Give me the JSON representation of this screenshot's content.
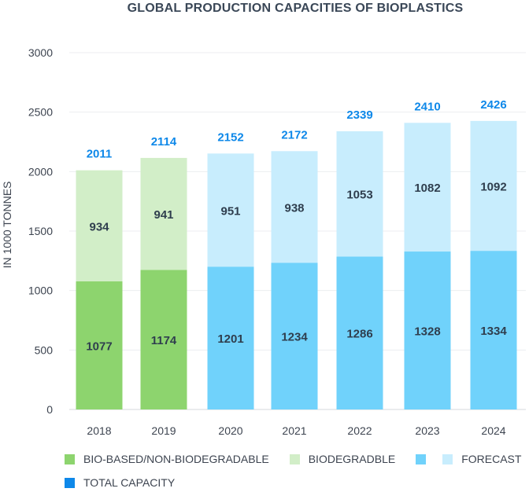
{
  "chart_data": {
    "type": "bar",
    "stacked": true,
    "title": "GLOBAL PRODUCTION CAPACITIES OF BIOPLASTICS",
    "ylabel": "IN 1000 TONNES",
    "xlabel": "",
    "ylim": [
      0,
      3000
    ],
    "yticks": [
      0,
      500,
      1000,
      1500,
      2000,
      2500,
      3000
    ],
    "grid": true,
    "categories": [
      "2018",
      "2019",
      "2020",
      "2021",
      "2022",
      "2023",
      "2024"
    ],
    "forecast": [
      false,
      false,
      true,
      true,
      true,
      true,
      true
    ],
    "series": [
      {
        "name": "BIO-BASED/NON-BIODEGRADABLE",
        "values": [
          1077,
          1174,
          1201,
          1234,
          1286,
          1328,
          1334
        ]
      },
      {
        "name": "BIODEGRADBLE",
        "values": [
          934,
          941,
          951,
          938,
          1053,
          1082,
          1092
        ]
      }
    ],
    "totals": {
      "name": "TOTAL CAPACITY",
      "values": [
        2011,
        2114,
        2152,
        2172,
        2339,
        2410,
        2426
      ]
    },
    "colors": {
      "bio_based": "#8dd46e",
      "biodegradable": "#d2eec8",
      "forecast_bio_based": "#70d2fb",
      "forecast_biodegradable": "#c8edfd",
      "total": "#0e88e9"
    },
    "legend_position": "bottom",
    "legend": {
      "bio_based": "BIO-BASED/NON-BIODEGRADABLE",
      "biodegradable": "BIODEGRADBLE",
      "forecast": "FORECAST",
      "total": "TOTAL CAPACITY"
    }
  }
}
